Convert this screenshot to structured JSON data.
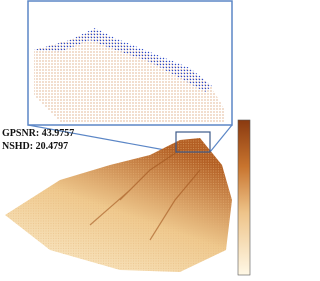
{
  "metrics": {
    "gpsnr": "GPSNR: 43.9757",
    "nshd": "NSHD: 20.4797"
  }
}
